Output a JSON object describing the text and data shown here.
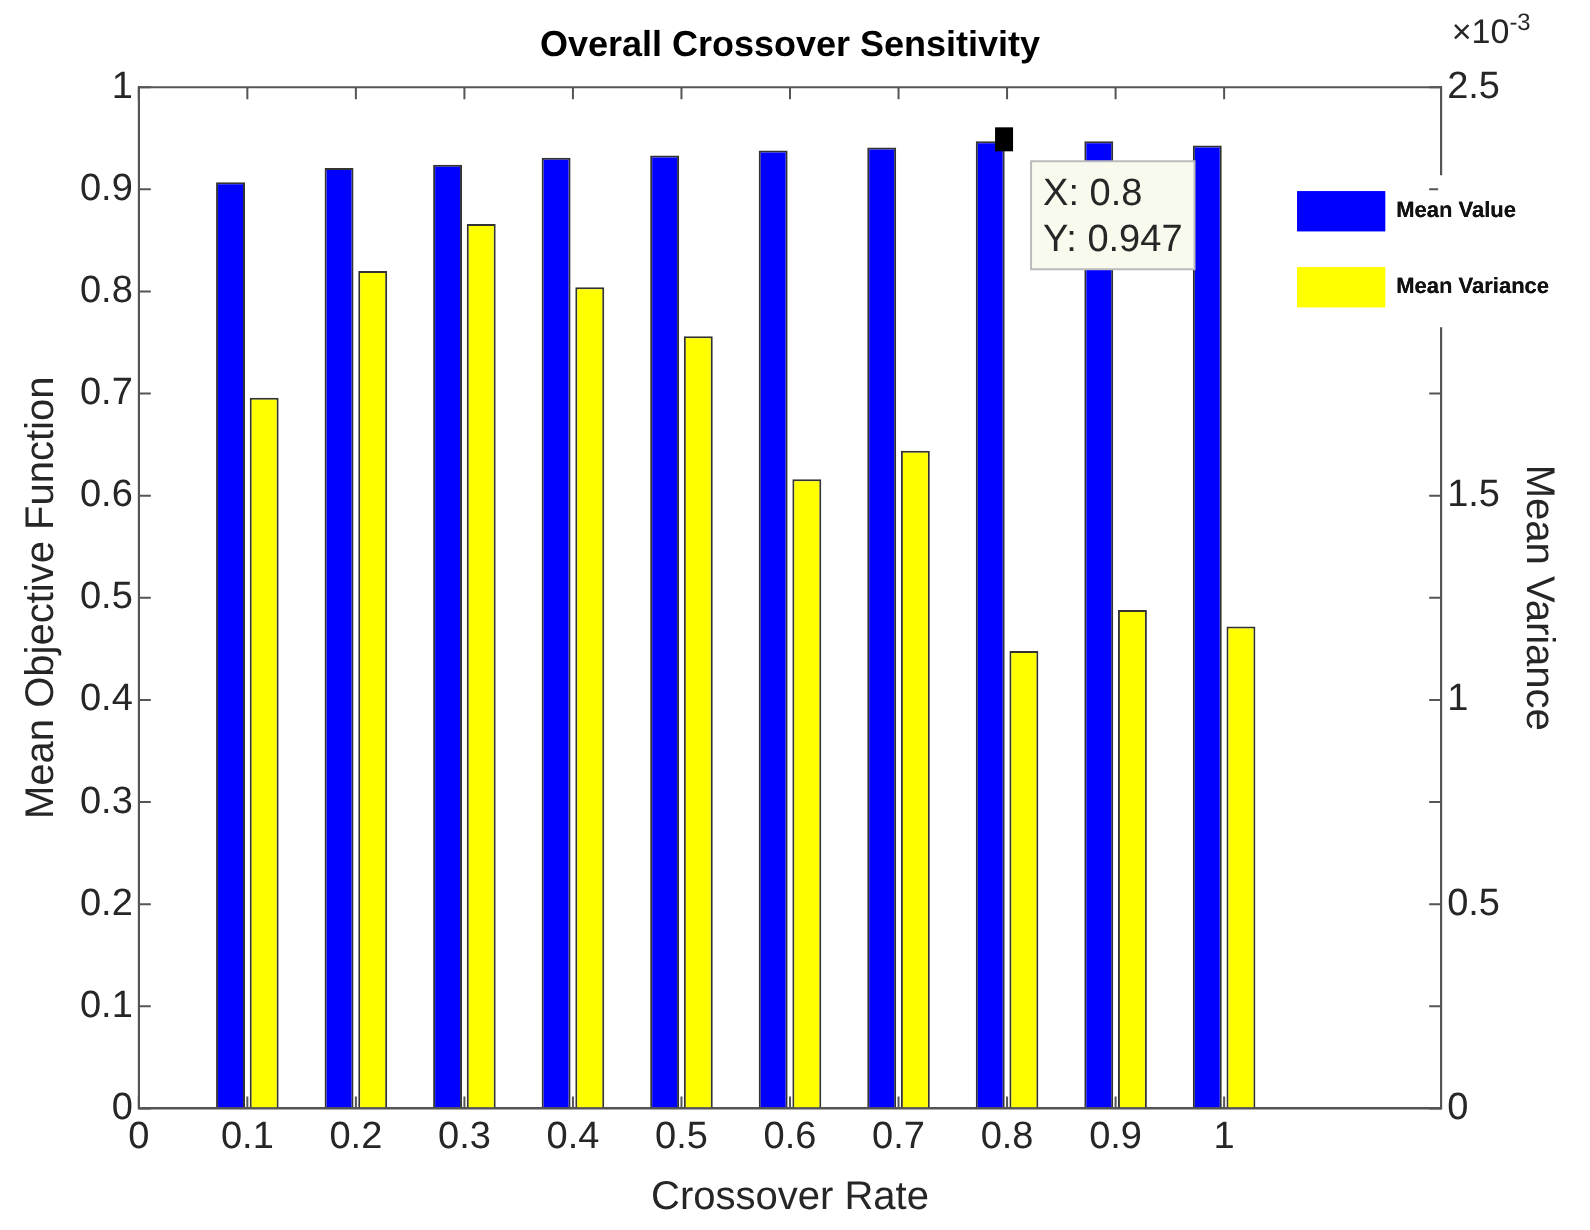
{
  "chart_data": {
    "type": "bar",
    "title": "Overall Crossover Sensitivity",
    "xlabel": "Crossover Rate",
    "ylabel": "Mean Objective Function",
    "y2label": "Mean Variance",
    "x": [
      0.1,
      0.2,
      0.3,
      0.4,
      0.5,
      0.6,
      0.7,
      0.8,
      0.9,
      1
    ],
    "series": [
      {
        "name": "Mean Value",
        "color": "#0000ff",
        "values": [
          0.907,
          0.921,
          0.924,
          0.931,
          0.933,
          0.938,
          0.941,
          0.947,
          0.947,
          0.943
        ]
      },
      {
        "name": "Mean Variance",
        "color": "#ffff00",
        "axis": "y2",
        "values": [
          1.74,
          2.05,
          2.165,
          2.01,
          1.89,
          1.54,
          1.61,
          1.12,
          1.22,
          1.18
        ]
      }
    ],
    "xlim": [
      0,
      1.2
    ],
    "xticks": [
      0,
      0.1,
      0.2,
      0.3,
      0.4,
      0.5,
      0.6,
      0.7,
      0.8,
      0.9,
      1
    ],
    "ylim": [
      0,
      1
    ],
    "yticks": [
      0,
      0.1,
      0.2,
      0.3,
      0.4,
      0.5,
      0.6,
      0.7,
      0.8,
      0.9,
      1
    ],
    "y2lim": [
      0,
      2.5
    ],
    "y2ticks": [
      0,
      {
        "value": 0.25,
        "label": null
      },
      0.5,
      {
        "value": 0.75,
        "label": null
      },
      1,
      {
        "value": 1.25,
        "label": null
      },
      1.5,
      {
        "value": 1.75,
        "label": null
      },
      {
        "value": 2,
        "label": null
      },
      {
        "value": 2.25,
        "label": null
      },
      2.5
    ],
    "annotations": [
      "×10$^{-3}$",
      {
        "text": "X: 0.8\nY: 0.947",
        "x": 0.8,
        "y": 0.947
      }
    ],
    "grid": false,
    "legend": "top right"
  }
}
